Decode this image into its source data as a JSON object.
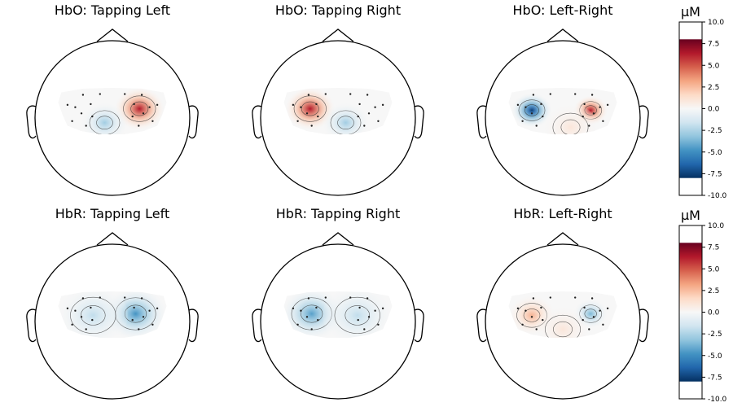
{
  "chart_data": [
    {
      "type": "heatmap",
      "subtype": "scalp-topomap",
      "title": "HbO: Tapping Left",
      "row": 0,
      "col": 0,
      "blobs": [
        {
          "x": 0.35,
          "y": -0.12,
          "value": 8.0,
          "spread": 0.32
        },
        {
          "x": -0.1,
          "y": 0.06,
          "value": -3.5,
          "spread": 0.3
        }
      ]
    },
    {
      "type": "heatmap",
      "subtype": "scalp-topomap",
      "title": "HbO: Tapping Right",
      "row": 0,
      "col": 1,
      "blobs": [
        {
          "x": -0.36,
          "y": -0.12,
          "value": 8.0,
          "spread": 0.32
        },
        {
          "x": 0.1,
          "y": 0.06,
          "value": -3.5,
          "spread": 0.3
        }
      ]
    },
    {
      "type": "heatmap",
      "subtype": "scalp-topomap",
      "title": "HbO: Left-Right",
      "row": 0,
      "col": 2,
      "blobs": [
        {
          "x": -0.4,
          "y": -0.1,
          "value": -9.5,
          "spread": 0.26
        },
        {
          "x": 0.36,
          "y": -0.1,
          "value": 8.0,
          "spread": 0.22
        },
        {
          "x": 0.1,
          "y": 0.12,
          "value": 1.2,
          "spread": 0.35
        }
      ]
    },
    {
      "type": "heatmap",
      "subtype": "scalp-topomap",
      "title": "HbR: Tapping Left",
      "row": 1,
      "col": 0,
      "blobs": [
        {
          "x": 0.3,
          "y": -0.1,
          "value": -6.0,
          "spread": 0.4
        },
        {
          "x": -0.25,
          "y": -0.08,
          "value": -2.5,
          "spread": 0.45
        }
      ]
    },
    {
      "type": "heatmap",
      "subtype": "scalp-topomap",
      "title": "HbR: Tapping Right",
      "row": 1,
      "col": 1,
      "blobs": [
        {
          "x": -0.34,
          "y": -0.1,
          "value": -5.5,
          "spread": 0.4
        },
        {
          "x": 0.25,
          "y": -0.08,
          "value": -2.5,
          "spread": 0.45
        }
      ]
    },
    {
      "type": "heatmap",
      "subtype": "scalp-topomap",
      "title": "HbR: Left-Right",
      "row": 1,
      "col": 2,
      "blobs": [
        {
          "x": -0.4,
          "y": -0.08,
          "value": 3.5,
          "spread": 0.3
        },
        {
          "x": 0.36,
          "y": -0.1,
          "value": -4.5,
          "spread": 0.22
        },
        {
          "x": 0.0,
          "y": 0.1,
          "value": 1.2,
          "spread": 0.35
        }
      ]
    }
  ],
  "colorbars": [
    {
      "unit": "µM",
      "range": [
        -10.0,
        10.0
      ],
      "ticks": [
        10.0,
        7.5,
        5.0,
        2.5,
        0.0,
        -2.5,
        -5.0,
        -7.5,
        -10.0
      ],
      "tick_labels": [
        "10.0",
        "7.5",
        "5.0",
        "2.5",
        "0.0",
        "-2.5",
        "-5.0",
        "-7.5",
        "-10.0"
      ]
    },
    {
      "unit": "µM",
      "range": [
        -10.0,
        10.0
      ],
      "ticks": [
        10.0,
        7.5,
        5.0,
        2.5,
        0.0,
        -2.5,
        -5.0,
        -7.5,
        -10.0
      ],
      "tick_labels": [
        "10.0",
        "7.5",
        "5.0",
        "2.5",
        "0.0",
        "-2.5",
        "-5.0",
        "-7.5",
        "-10.0"
      ]
    }
  ],
  "colormap": {
    "name": "RdBu_r",
    "low": "#053061",
    "mid": "#f7f7f7",
    "high": "#67001f"
  }
}
